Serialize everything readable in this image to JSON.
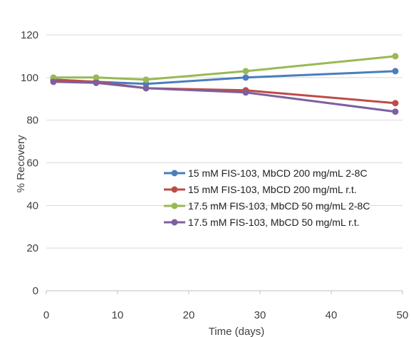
{
  "chart_data": {
    "type": "line",
    "title": "",
    "xlabel": "Time (days)",
    "ylabel": "% Recovery",
    "xlim": [
      0,
      50
    ],
    "ylim": [
      0,
      120
    ],
    "x_ticks": [
      0,
      10,
      20,
      30,
      40,
      50
    ],
    "y_ticks": [
      0,
      20,
      40,
      60,
      80,
      100,
      120
    ],
    "grid": true,
    "legend_position": "center-right",
    "series": [
      {
        "name": "15 mM FIS-103, MbCD 200 mg/mL 2-8C",
        "color": "#4a7ebb",
        "x": [
          1,
          7,
          14,
          28,
          49
        ],
        "values": [
          99,
          98,
          97,
          100,
          103
        ]
      },
      {
        "name": "15 mM FIS-103, MbCD 200 mg/mL r.t.",
        "color": "#be4b48",
        "x": [
          1,
          7,
          14,
          28,
          49
        ],
        "values": [
          99,
          98,
          95,
          94,
          88
        ]
      },
      {
        "name": "17.5 mM FIS-103, MbCD 50 mg/mL 2-8C",
        "color": "#98b954",
        "x": [
          1,
          7,
          14,
          28,
          49
        ],
        "values": [
          100,
          100,
          99,
          103,
          110
        ]
      },
      {
        "name": "17.5 mM FIS-103, MbCD 50 mg/mL r.t.",
        "color": "#7d60a0",
        "x": [
          1,
          7,
          14,
          28,
          49
        ],
        "values": [
          98,
          97.5,
          95,
          93,
          84
        ]
      }
    ]
  }
}
